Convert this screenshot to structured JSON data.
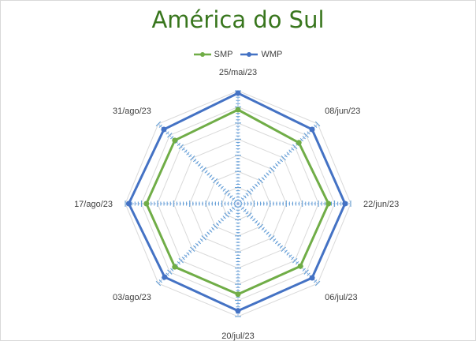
{
  "chart_data": {
    "type": "radar",
    "title": "América do Sul",
    "categories": [
      "25/mai/23",
      "08/jun/23",
      "22/jun/23",
      "06/jul/23",
      "20/jul/23",
      "03/ago/23",
      "17/ago/23",
      "31/ago/23"
    ],
    "series": [
      {
        "name": "SMP",
        "color": "#70ad47",
        "values": [
          0.85,
          0.78,
          0.82,
          0.8,
          0.82,
          0.81,
          0.83,
          0.81
        ]
      },
      {
        "name": "WMP",
        "color": "#4472c4",
        "values": [
          1.0,
          0.95,
          0.97,
          0.95,
          0.97,
          0.94,
          0.99,
          0.95
        ]
      }
    ],
    "grid": true,
    "legend_position": "top"
  }
}
